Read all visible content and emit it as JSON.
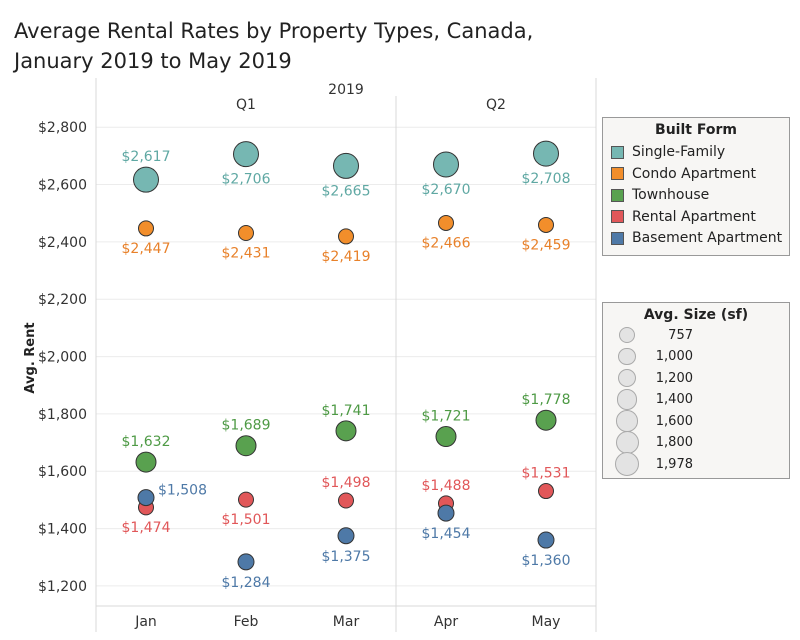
{
  "title_line1": "Average Rental Rates by Property Types, Canada,",
  "title_line2": "January 2019 to May 2019",
  "chart_data": {
    "type": "scatter",
    "year": "2019",
    "quarters": [
      {
        "label": "Q1",
        "months": [
          "Jan",
          "Feb",
          "Mar"
        ]
      },
      {
        "label": "Q2",
        "months": [
          "Apr",
          "May"
        ]
      }
    ],
    "categories": [
      "Jan",
      "Feb",
      "Mar",
      "Apr",
      "May"
    ],
    "ylabel": "Avg. Rent",
    "ylim": [
      1130,
      2860
    ],
    "yticks": [
      1200,
      1400,
      1600,
      1800,
      2000,
      2200,
      2400,
      2600,
      2800
    ],
    "ytick_labels": [
      "$1,200",
      "$1,400",
      "$1,600",
      "$1,800",
      "$2,000",
      "$2,200",
      "$2,400",
      "$2,600",
      "$2,800"
    ],
    "series": [
      {
        "name": "Single-Family",
        "color": "#76b7b2",
        "values": [
          2617,
          2706,
          2665,
          2670,
          2708
        ],
        "labels": [
          "$2,617",
          "$2,706",
          "$2,665",
          "$2,670",
          "$2,708"
        ],
        "sizes": [
          1850,
          1978,
          1900,
          1930,
          1978
        ]
      },
      {
        "name": "Condo Apartment",
        "color": "#f28e2b",
        "values": [
          2447,
          2431,
          2419,
          2466,
          2459
        ],
        "labels": [
          "$2,447",
          "$2,431",
          "$2,419",
          "$2,466",
          "$2,459"
        ],
        "sizes": [
          800,
          800,
          800,
          800,
          800
        ]
      },
      {
        "name": "Townhouse",
        "color": "#59a14f",
        "values": [
          1632,
          1689,
          1741,
          1721,
          1778
        ],
        "labels": [
          "$1,632",
          "$1,689",
          "$1,741",
          "$1,721",
          "$1,778"
        ],
        "sizes": [
          1400,
          1400,
          1400,
          1400,
          1400
        ]
      },
      {
        "name": "Rental Apartment",
        "color": "#e15759",
        "values": [
          1474,
          1501,
          1498,
          1488,
          1531
        ],
        "labels": [
          "$1,474",
          "$1,501",
          "$1,498",
          "$1,488",
          "$1,531"
        ],
        "sizes": [
          800,
          800,
          800,
          800,
          800
        ]
      },
      {
        "name": "Basement Apartment",
        "color": "#4e79a7",
        "values": [
          1508,
          1284,
          1375,
          1454,
          1360
        ],
        "labels": [
          "$1,508",
          "$1,284",
          "$1,375",
          "$1,454",
          "$1,360"
        ],
        "sizes": [
          900,
          900,
          900,
          900,
          900
        ]
      }
    ],
    "legend_color_title": "Built Form",
    "legend_size_title": "Avg. Size (sf)",
    "legend_size_entries": [
      {
        "label": "757",
        "value": 757
      },
      {
        "label": "1,000",
        "value": 1000
      },
      {
        "label": "1,200",
        "value": 1200
      },
      {
        "label": "1,400",
        "value": 1400
      },
      {
        "label": "1,600",
        "value": 1600
      },
      {
        "label": "1,800",
        "value": 1800
      },
      {
        "label": "1,978",
        "value": 1978
      }
    ],
    "grid": true
  }
}
